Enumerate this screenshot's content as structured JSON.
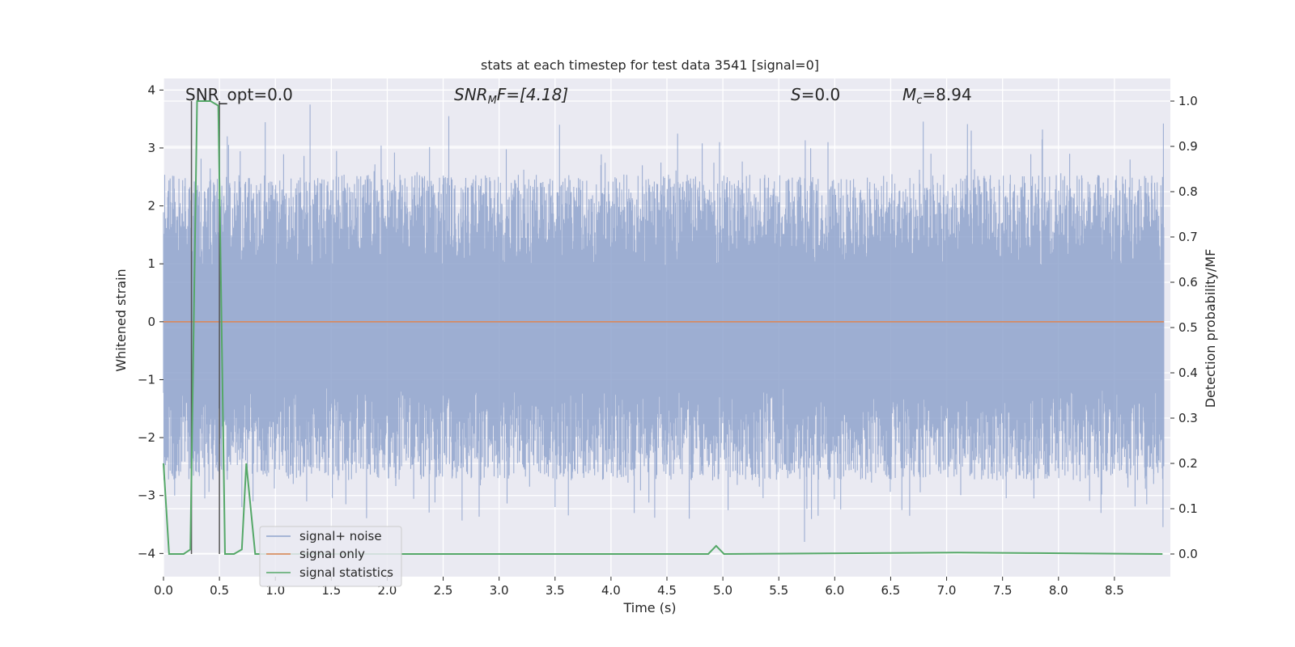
{
  "chart_data": {
    "type": "line",
    "title": "stats at each timestep for test data 3541 [signal=0]",
    "xlabel": "Time (s)",
    "ylabel_left": "Whitened strain",
    "ylabel_right": "Detection probability/MF",
    "xlim": [
      0.0,
      9.0
    ],
    "ylim_left": [
      -4.4,
      4.2
    ],
    "ylim_right": [
      -0.05,
      1.05
    ],
    "xticks": [
      "0.0",
      "0.5",
      "1.0",
      "1.5",
      "2.0",
      "2.5",
      "3.0",
      "3.5",
      "4.0",
      "4.5",
      "5.0",
      "5.5",
      "6.0",
      "6.5",
      "7.0",
      "7.5",
      "8.0",
      "8.5"
    ],
    "yticks_left": [
      "−4",
      "−3",
      "−2",
      "−1",
      "0",
      "1",
      "2",
      "3",
      "4"
    ],
    "yticks_right": [
      "0.0",
      "0.1",
      "0.2",
      "0.3",
      "0.4",
      "0.5",
      "0.6",
      "0.7",
      "0.8",
      "0.9",
      "1.0"
    ],
    "grid": true,
    "legend_position": "lower-left",
    "annotations": {
      "snr_opt": "SNR_opt=0.0",
      "snr_mf_prefix": "SNR",
      "snr_mf_sub": "M",
      "snr_mf_suffix": "F=[4.18]",
      "s_symbol": "S",
      "s_value": "=0.0",
      "mc_symbol": "M",
      "mc_sub": "c",
      "mc_value": "=8.94"
    },
    "series": [
      {
        "name": "signal+ noise",
        "axis": "left",
        "color": "#8fa3cc",
        "envelope_typical": [
          -1.7,
          1.5
        ],
        "peaks": [
          [
            1.31,
            3.75
          ],
          [
            2.55,
            3.55
          ],
          [
            3.54,
            3.4
          ],
          [
            7.22,
            3.3
          ],
          [
            5.94,
            3.1
          ],
          [
            4.97,
            3.1
          ],
          [
            0.57,
            3.2
          ],
          [
            8.1,
            2.9
          ],
          [
            6.86,
            2.9
          ],
          [
            4.28,
            2.7
          ],
          [
            8.64,
            2.8
          ],
          [
            8.93,
            2.5
          ]
        ],
        "troughs": [
          [
            5.73,
            -3.8
          ],
          [
            3.5,
            -3.2
          ],
          [
            4.7,
            -3.4
          ],
          [
            6.67,
            -3.35
          ],
          [
            6.6,
            -3.25
          ],
          [
            8.38,
            -3.3
          ],
          [
            1.63,
            -3.15
          ],
          [
            1.28,
            -3.1
          ],
          [
            0.7,
            -3.2
          ],
          [
            0.1,
            -3.0
          ],
          [
            2.75,
            -2.7
          ],
          [
            5.58,
            -2.7
          ],
          [
            7.78,
            -3.05
          ],
          [
            8.85,
            -2.8
          ],
          [
            1.16,
            -2.8
          ],
          [
            0.8,
            -3.1
          ]
        ]
      },
      {
        "name": "signal only",
        "axis": "left",
        "color": "#dd8452",
        "x": [
          0.0,
          9.0
        ],
        "y": [
          0.0,
          0.0
        ]
      },
      {
        "name": "signal statistics",
        "axis": "right",
        "color": "#55a868",
        "x": [
          0.0,
          0.05,
          0.18,
          0.24,
          0.3,
          0.42,
          0.49,
          0.55,
          0.63,
          0.7,
          0.74,
          0.82,
          4.87,
          4.94,
          5.01,
          7.1,
          7.8,
          8.93
        ],
        "y": [
          0.2,
          0.0,
          0.0,
          0.01,
          1.0,
          1.0,
          0.99,
          0.0,
          0.0,
          0.01,
          0.2,
          0.0,
          0.0,
          0.018,
          0.0,
          0.003,
          0.002,
          0.0
        ]
      }
    ],
    "vertical_lines": [
      0.25,
      0.5
    ],
    "vertical_line_color": "#555555"
  }
}
